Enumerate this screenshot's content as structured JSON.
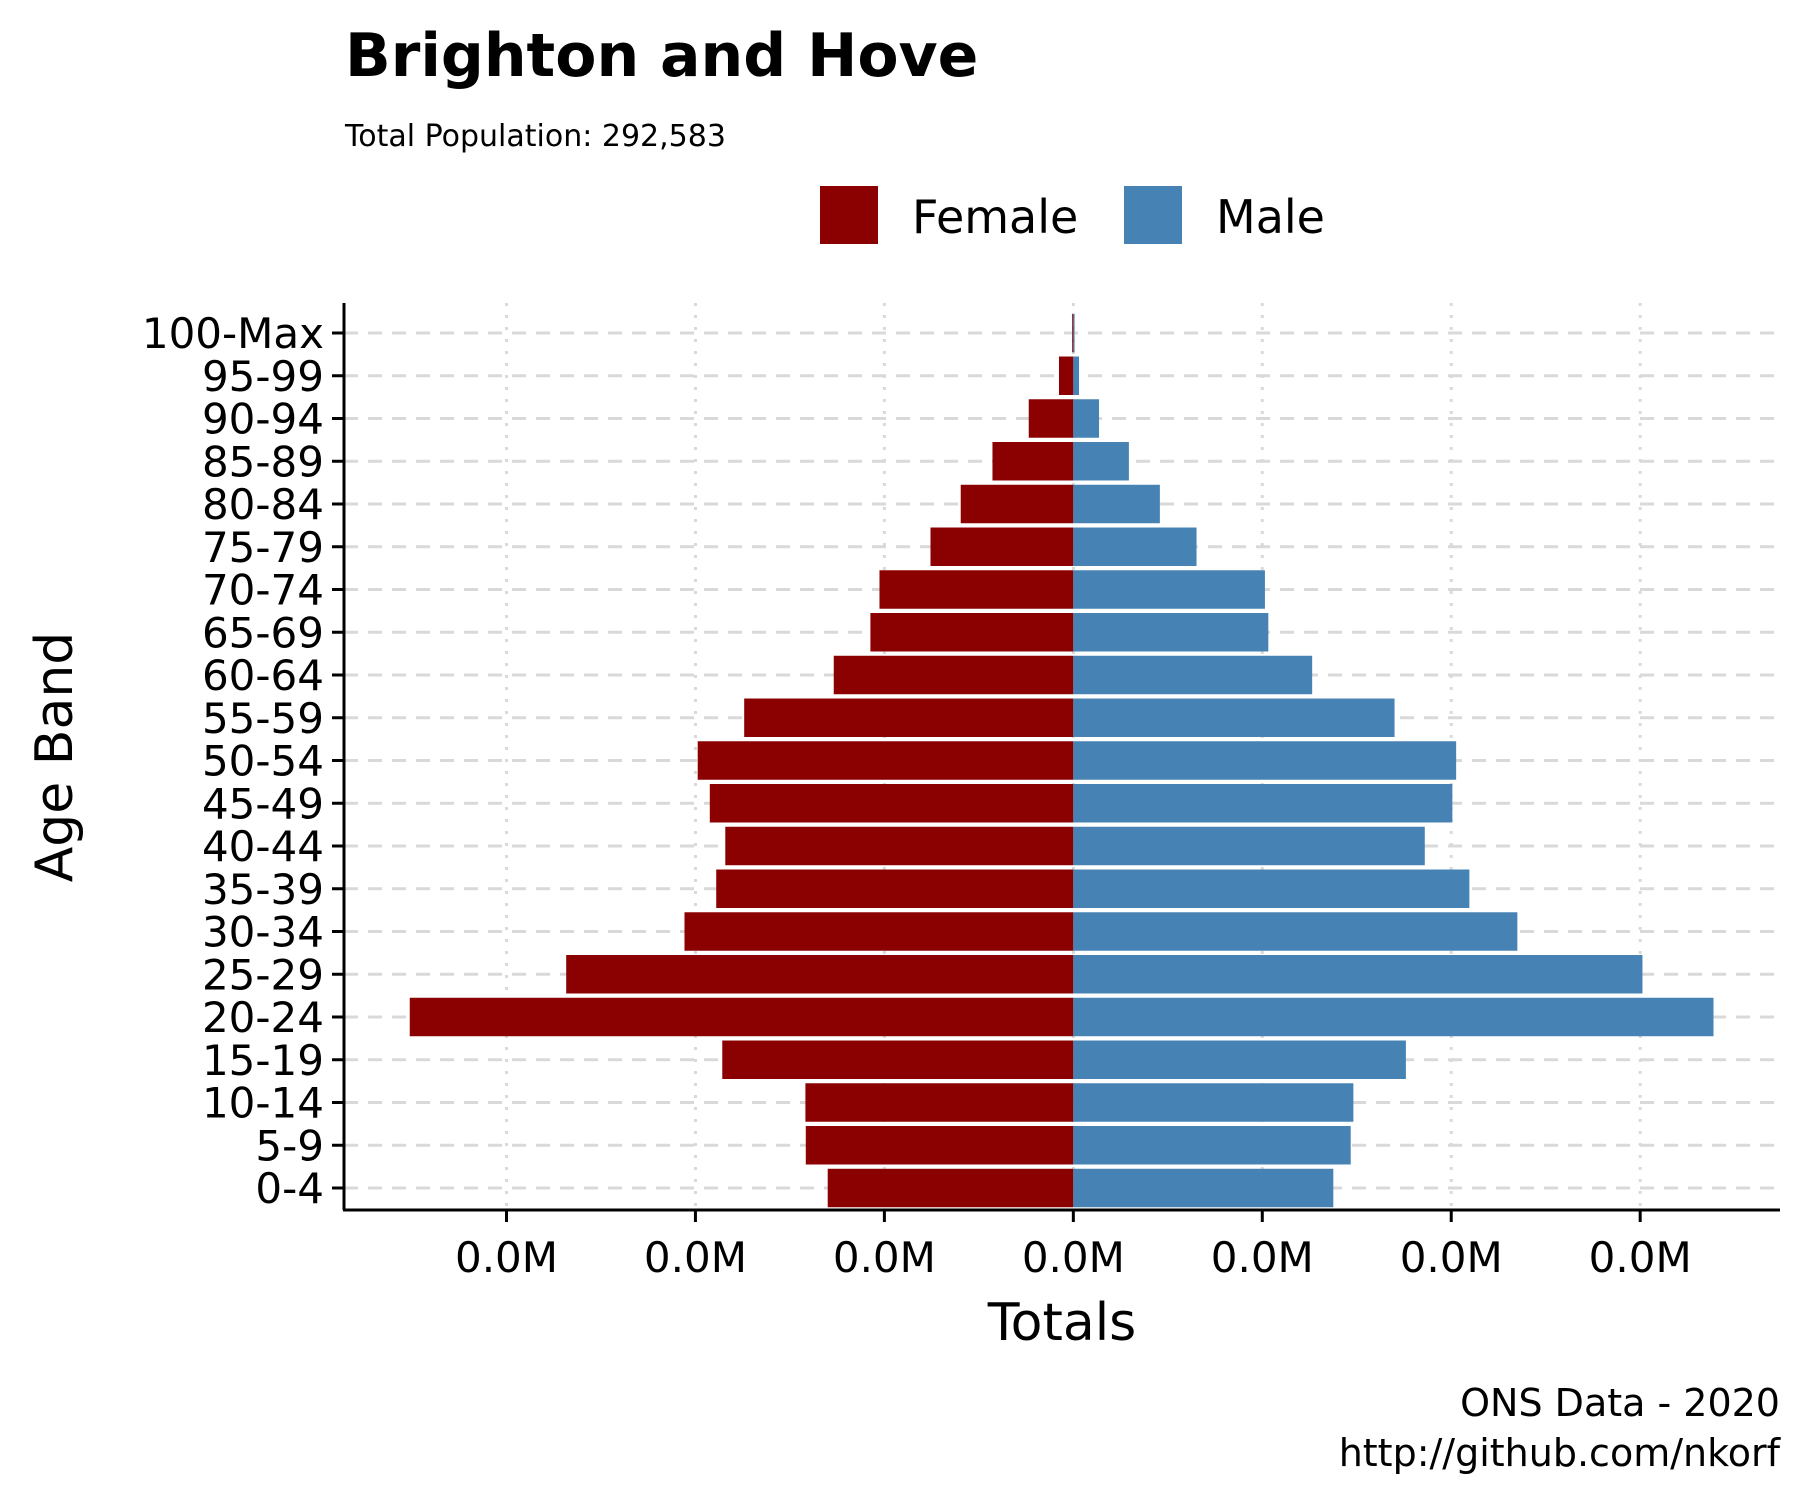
{
  "chart_data": {
    "type": "bar",
    "orientation": "horizontal-population-pyramid",
    "title": "Brighton and Hove",
    "subtitle": "Total Population:  292,583",
    "xlabel": "Totals",
    "ylabel": "Age Band",
    "caption_lines": [
      "ONS Data - 2020",
      "http://github.com/nkorf"
    ],
    "categories": [
      "0-4",
      "5-9",
      "10-14",
      "15-19",
      "20-24",
      "25-29",
      "30-34",
      "35-39",
      "40-44",
      "45-49",
      "50-54",
      "55-59",
      "60-64",
      "65-69",
      "70-74",
      "75-79",
      "80-84",
      "85-89",
      "90-94",
      "95-99",
      "100-Max"
    ],
    "x_tick_labels": [
      "0.0M",
      "0.0M",
      "0.0M",
      "0.0M",
      "0.0M",
      "0.0M",
      "0.0M"
    ],
    "x_tick_values": [
      -15000,
      -10000,
      -5000,
      0,
      5000,
      10000,
      15000
    ],
    "xlim": [
      -19300,
      18700
    ],
    "legend": {
      "position": "top",
      "entries": [
        "Female",
        "Male"
      ]
    },
    "grid": {
      "x": "dotted",
      "y": "dashed"
    },
    "colors": {
      "Female": "#8B0000",
      "Male": "#4682B4",
      "grid": "#d9d9d9"
    },
    "series": [
      {
        "name": "Female",
        "values": [
          -6500,
          -7080,
          -7090,
          -9290,
          -17560,
          -13420,
          -10290,
          -9450,
          -9210,
          -9620,
          -9940,
          -8710,
          -6340,
          -5370,
          -5130,
          -3780,
          -2980,
          -2140,
          -1180,
          -380,
          -30
        ]
      },
      {
        "name": "Male",
        "values": [
          6880,
          7340,
          7410,
          8800,
          16940,
          15060,
          11750,
          10480,
          9300,
          10030,
          10130,
          8500,
          6320,
          5160,
          5070,
          3260,
          2290,
          1470,
          680,
          150,
          20
        ]
      }
    ]
  }
}
